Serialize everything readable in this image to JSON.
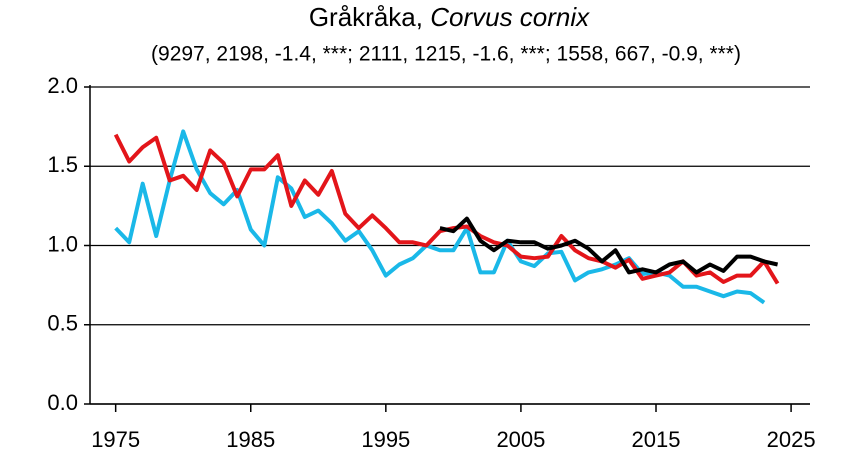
{
  "chart_data": {
    "type": "line",
    "title": "Gråkråka,",
    "title_species": "Corvus cornix",
    "subtitle": "(9297, 2198, -1.4, ***; 2111, 1215, -1.6, ***; 1558, 667, -0.9, ***)",
    "x": [
      1975,
      1976,
      1977,
      1978,
      1979,
      1980,
      1981,
      1982,
      1983,
      1984,
      1985,
      1986,
      1987,
      1988,
      1989,
      1990,
      1991,
      1992,
      1993,
      1994,
      1995,
      1996,
      1997,
      1998,
      1999,
      2000,
      2001,
      2002,
      2003,
      2004,
      2005,
      2006,
      2007,
      2008,
      2009,
      2010,
      2011,
      2012,
      2013,
      2014,
      2015,
      2016,
      2017,
      2018,
      2019,
      2020,
      2021,
      2022,
      2023,
      2024
    ],
    "series": [
      {
        "color": "#1ab8e8",
        "values": [
          1.11,
          1.02,
          1.39,
          1.06,
          1.41,
          1.72,
          1.48,
          1.33,
          1.26,
          1.35,
          1.1,
          1.0,
          1.43,
          1.36,
          1.18,
          1.22,
          1.14,
          1.03,
          1.09,
          0.97,
          0.81,
          0.88,
          0.92,
          1.0,
          0.97,
          0.97,
          1.11,
          0.83,
          0.83,
          1.03,
          0.9,
          0.87,
          0.95,
          0.96,
          0.78,
          0.83,
          0.85,
          0.88,
          0.92,
          0.82,
          0.83,
          0.81,
          0.74,
          0.74,
          0.71,
          0.68,
          0.71,
          0.7,
          0.64,
          null
        ]
      },
      {
        "color": "#e3151a",
        "values": [
          1.7,
          1.53,
          1.62,
          1.68,
          1.41,
          1.44,
          1.35,
          1.6,
          1.52,
          1.31,
          1.48,
          1.48,
          1.57,
          1.25,
          1.41,
          1.32,
          1.47,
          1.2,
          1.11,
          1.19,
          1.11,
          1.02,
          1.02,
          1.0,
          1.09,
          1.11,
          1.12,
          1.06,
          1.02,
          1.0,
          0.93,
          0.92,
          0.93,
          1.06,
          0.97,
          0.92,
          0.9,
          0.86,
          0.91,
          0.79,
          0.81,
          0.83,
          0.9,
          0.81,
          0.83,
          0.77,
          0.81,
          0.81,
          0.9,
          0.76
        ]
      },
      {
        "color": "#000000",
        "values": [
          null,
          null,
          null,
          null,
          null,
          null,
          null,
          null,
          null,
          null,
          null,
          null,
          null,
          null,
          null,
          null,
          null,
          null,
          null,
          null,
          null,
          null,
          null,
          null,
          1.11,
          1.09,
          1.17,
          1.03,
          0.97,
          1.03,
          1.02,
          1.02,
          0.98,
          1.0,
          1.03,
          0.98,
          0.9,
          0.97,
          0.83,
          0.85,
          0.83,
          0.88,
          0.9,
          0.83,
          0.88,
          0.84,
          0.93,
          0.93,
          0.9,
          0.88
        ]
      }
    ],
    "xlim": [
      1973.1,
      2026.4
    ],
    "xticks": [
      1975,
      1985,
      1995,
      2005,
      2015,
      2025
    ],
    "ylim": [
      0,
      2
    ],
    "yticks": [
      {
        "value": 0,
        "label": "0.0"
      },
      0.5,
      {
        "value": 1,
        "label": "1.0"
      },
      1.5,
      {
        "value": 2,
        "label": "2.0"
      }
    ],
    "grid": true
  }
}
